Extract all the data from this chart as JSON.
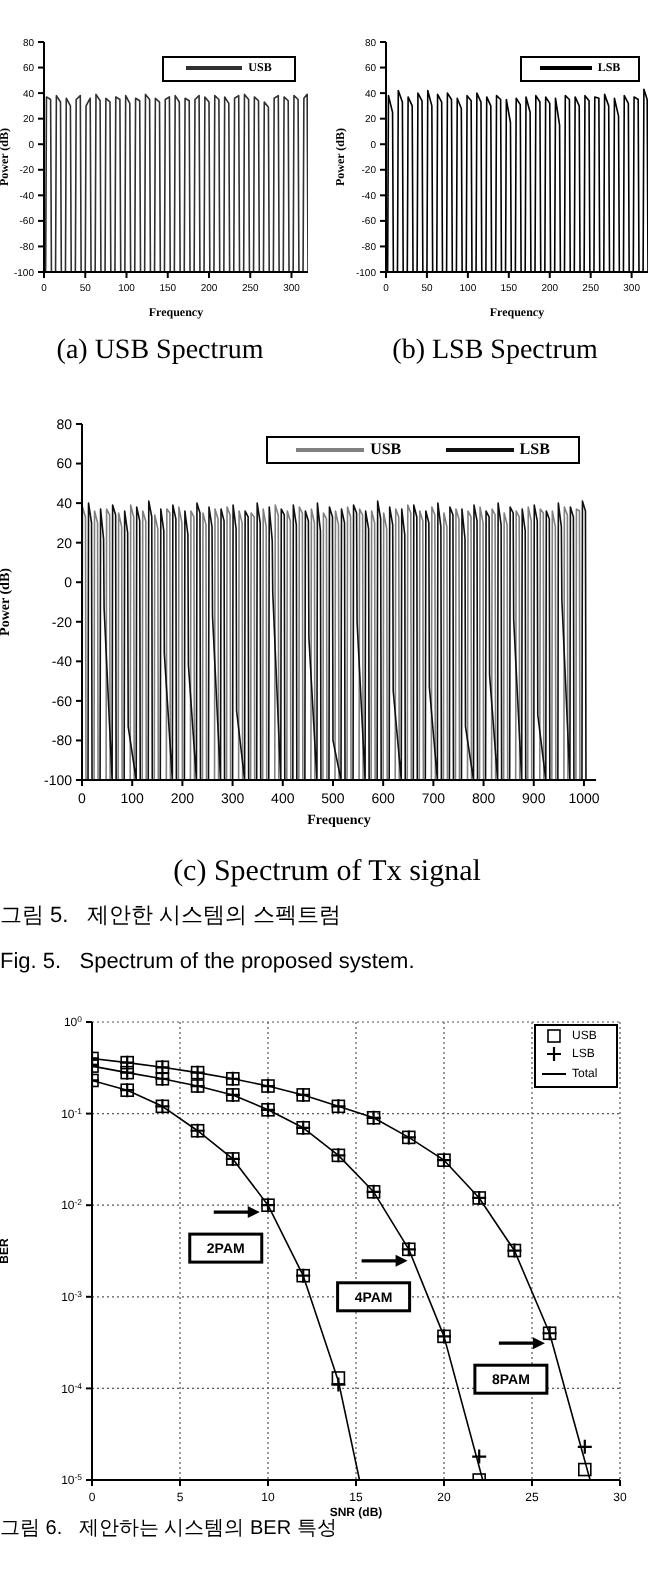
{
  "chart_data": [
    {
      "type": "line",
      "xlabel": "Frequency",
      "ylabel": "Power (dB)",
      "xlim": [
        0,
        320
      ],
      "xticks": [
        0,
        50,
        100,
        150,
        200,
        250,
        300
      ],
      "ylim": [
        -100,
        80
      ],
      "yticks": [
        -100,
        -80,
        -60,
        -40,
        -20,
        0,
        20,
        40,
        60,
        80
      ],
      "legend": "top right",
      "annotations": [
        "(a) USB Spectrum"
      ],
      "series": [
        {
          "name": "USB",
          "color": "#303030",
          "x": [
            2,
            3,
            8,
            9,
            14,
            15,
            20,
            21,
            26,
            27,
            32,
            33,
            38,
            39,
            44,
            45,
            50,
            51,
            56,
            57,
            62,
            63,
            68,
            69,
            74,
            75,
            80,
            81,
            86,
            87,
            92,
            93,
            98,
            99,
            104,
            105,
            110,
            111,
            116,
            117,
            122,
            123,
            128,
            129,
            134,
            135,
            140,
            141,
            146,
            147,
            152,
            153,
            158,
            159,
            164,
            165,
            170,
            171,
            176,
            177,
            182,
            183,
            188,
            189,
            194,
            195,
            200,
            201,
            206,
            207,
            212,
            213,
            218,
            219,
            224,
            225,
            230,
            231,
            236,
            237,
            242,
            243,
            248,
            249,
            254,
            255,
            260,
            261,
            266,
            267,
            272,
            273,
            278,
            279,
            284,
            285,
            290,
            291,
            296,
            297,
            302,
            303,
            308,
            309,
            314,
            315,
            319,
            320
          ],
          "values": [
            -100,
            37,
            35,
            -100,
            -100,
            38,
            33,
            -100,
            -100,
            36,
            30,
            -100,
            -100,
            35,
            38,
            -100,
            -100,
            30,
            36,
            -100,
            -100,
            39,
            34,
            -100,
            -100,
            36,
            33,
            -100,
            -100,
            37,
            35,
            -100,
            -100,
            38,
            32,
            -100,
            -100,
            36,
            34,
            -100,
            -100,
            39,
            35,
            -100,
            -100,
            36,
            33,
            -100,
            -100,
            35,
            37,
            -100,
            -100,
            38,
            33,
            -100,
            -100,
            36,
            34,
            -100,
            -100,
            35,
            38,
            -100,
            -100,
            37,
            33,
            -100,
            -100,
            38,
            35,
            -100,
            -100,
            37,
            32,
            -100,
            -100,
            36,
            38,
            -100,
            -100,
            39,
            35,
            -100,
            -100,
            37,
            34,
            -100,
            -100,
            33,
            29,
            -100,
            -100,
            36,
            38,
            -100,
            -100,
            37,
            34,
            -100,
            -100,
            38,
            35,
            -100,
            -100,
            36,
            39,
            -100
          ]
        }
      ]
    },
    {
      "type": "line",
      "xlabel": "Frequency",
      "ylabel": "Power (dB)",
      "xlim": [
        0,
        320
      ],
      "xticks": [
        0,
        50,
        100,
        150,
        200,
        250,
        300
      ],
      "ylim": [
        -100,
        80
      ],
      "yticks": [
        -100,
        -80,
        -60,
        -40,
        -20,
        0,
        20,
        40,
        60,
        80
      ],
      "legend": "top right",
      "annotations": [
        "(b) LSB Spectrum"
      ],
      "series": [
        {
          "name": "LSB",
          "color": "#000000",
          "x": [
            2,
            3,
            8,
            9,
            14,
            15,
            20,
            21,
            26,
            27,
            32,
            33,
            38,
            39,
            44,
            45,
            50,
            51,
            56,
            57,
            62,
            63,
            68,
            69,
            74,
            75,
            80,
            81,
            86,
            87,
            92,
            93,
            98,
            99,
            104,
            105,
            110,
            111,
            116,
            117,
            122,
            123,
            128,
            129,
            134,
            135,
            140,
            141,
            146,
            147,
            152,
            153,
            158,
            159,
            164,
            165,
            170,
            171,
            176,
            177,
            182,
            183,
            188,
            189,
            194,
            195,
            200,
            201,
            206,
            207,
            212,
            213,
            218,
            219,
            224,
            225,
            230,
            231,
            236,
            237,
            242,
            243,
            248,
            249,
            254,
            255,
            260,
            261,
            266,
            267,
            272,
            273,
            278,
            279,
            284,
            285,
            290,
            291,
            296,
            297,
            302,
            303,
            308,
            309,
            314,
            315,
            319,
            320
          ],
          "values": [
            -100,
            38,
            25,
            -100,
            -100,
            42,
            33,
            -100,
            -100,
            37,
            30,
            -100,
            -100,
            40,
            34,
            -100,
            -100,
            42,
            30,
            -100,
            -100,
            39,
            33,
            -100,
            -100,
            40,
            35,
            -100,
            -100,
            36,
            28,
            -100,
            -100,
            38,
            34,
            -100,
            -100,
            40,
            33,
            -100,
            -100,
            37,
            30,
            -100,
            -100,
            38,
            35,
            -100,
            -100,
            35,
            17,
            -100,
            -100,
            36,
            31,
            -100,
            -100,
            37,
            25,
            -100,
            -100,
            38,
            33,
            -100,
            -100,
            37,
            32,
            -100,
            -100,
            36,
            15,
            -100,
            -100,
            38,
            35,
            -100,
            -100,
            37,
            30,
            -100,
            -100,
            38,
            34,
            -100,
            -100,
            37,
            36,
            -100,
            -100,
            39,
            30,
            -100,
            -100,
            36,
            22,
            -100,
            -100,
            38,
            32,
            -100,
            -100,
            37,
            35,
            -100,
            -100,
            43,
            35,
            -100
          ]
        }
      ]
    },
    {
      "type": "line",
      "xlabel": "Frequency",
      "ylabel": "Power (dB)",
      "xlim": [
        0,
        1024
      ],
      "xticks": [
        0,
        100,
        200,
        300,
        400,
        500,
        600,
        700,
        800,
        900,
        1000
      ],
      "ylim": [
        -100,
        80
      ],
      "yticks": [
        -100,
        -80,
        -60,
        -40,
        -20,
        0,
        20,
        40,
        60,
        80
      ],
      "legend": "top right",
      "annotations": [
        "(c) Spectrum of Tx signal",
        "그림 5.   제안한 시스템의 스펙트럼",
        "Fig. 5.   Spectrum of the proposed system."
      ],
      "series": [
        {
          "name": "USB",
          "color": "#808080",
          "x": [
            0,
            1,
            7,
            8,
            24,
            25,
            31,
            32,
            48,
            49,
            55,
            56,
            72,
            73,
            79,
            80,
            96,
            97,
            103,
            104,
            120,
            121,
            127,
            128,
            144,
            145,
            151,
            152,
            168,
            169,
            175,
            176,
            192,
            193,
            199,
            200,
            216,
            217,
            223,
            224,
            240,
            241,
            247,
            248,
            264,
            265,
            271,
            272,
            288,
            289,
            295,
            296,
            312,
            313,
            319,
            320,
            336,
            337,
            343,
            344,
            360,
            361,
            367,
            368,
            384,
            385,
            391,
            392,
            408,
            409,
            415,
            416,
            432,
            433,
            439,
            440,
            456,
            457,
            463,
            464,
            480,
            481,
            487,
            488,
            504,
            505,
            511,
            512,
            528,
            529,
            535,
            536,
            552,
            553,
            559,
            560,
            576,
            577,
            583,
            584,
            600,
            601,
            607,
            608,
            624,
            625,
            631,
            632,
            648,
            649,
            655,
            656,
            672,
            673,
            679,
            680,
            696,
            697,
            703,
            704,
            720,
            721,
            727,
            728,
            744,
            745,
            751,
            752,
            768,
            769,
            775,
            776,
            792,
            793,
            799,
            800,
            816,
            817,
            823,
            824,
            840,
            841,
            847,
            848,
            864,
            865,
            871,
            872,
            888,
            889,
            895,
            896,
            912,
            913,
            919,
            920,
            936,
            937,
            943,
            944,
            960,
            961,
            967,
            968,
            984,
            985,
            991,
            992
          ],
          "values": [
            -100,
            38,
            33,
            -100,
            -100,
            36,
            30,
            -100,
            -100,
            37,
            34,
            -100,
            -100,
            35,
            28,
            -100,
            -100,
            39,
            33,
            -100,
            -100,
            36,
            31,
            -100,
            -100,
            34,
            27,
            -100,
            -100,
            37,
            35,
            -100,
            -100,
            38,
            30,
            -100,
            -100,
            36,
            33,
            -100,
            -100,
            35,
            29,
            -100,
            -100,
            37,
            32,
            -100,
            -100,
            38,
            34,
            -100,
            -100,
            36,
            30,
            -100,
            -100,
            35,
            33,
            -100,
            -100,
            37,
            28,
            -100,
            -100,
            39,
            34,
            -100,
            -100,
            36,
            31,
            -100,
            -100,
            38,
            35,
            -100,
            -100,
            37,
            30,
            -100,
            -100,
            35,
            32,
            -100,
            -100,
            36,
            29,
            -100,
            -100,
            38,
            33,
            -100,
            -100,
            37,
            34,
            -100,
            -100,
            36,
            30,
            -100,
            -100,
            35,
            27,
            -100,
            -100,
            37,
            33,
            -100,
            -100,
            39,
            35,
            -100,
            -100,
            36,
            31,
            -100,
            -100,
            38,
            34,
            -100,
            -100,
            35,
            28,
            -100,
            -100,
            37,
            32,
            -100,
            -100,
            36,
            33,
            -100,
            -100,
            38,
            30,
            -100,
            -100,
            37,
            34,
            -100,
            -100,
            35,
            29,
            -100,
            -100,
            36,
            33,
            -100,
            -100,
            38,
            31,
            -100,
            -100,
            37,
            35,
            -100,
            -100,
            36,
            28,
            -100,
            -100,
            38,
            34,
            -100,
            -100,
            37,
            36,
            -100
          ]
        },
        {
          "name": "LSB",
          "color": "#101010",
          "x": [
            12,
            13,
            19,
            20,
            36,
            37,
            43,
            44,
            60,
            61,
            67,
            68,
            84,
            85,
            91,
            92,
            108,
            109,
            115,
            116,
            132,
            133,
            139,
            140,
            156,
            157,
            163,
            164,
            180,
            181,
            187,
            188,
            204,
            205,
            211,
            212,
            228,
            229,
            235,
            236,
            252,
            253,
            259,
            260,
            276,
            277,
            283,
            284,
            300,
            301,
            307,
            308,
            324,
            325,
            331,
            332,
            348,
            349,
            355,
            356,
            372,
            373,
            379,
            380,
            396,
            397,
            403,
            404,
            420,
            421,
            427,
            428,
            444,
            445,
            451,
            452,
            468,
            469,
            475,
            476,
            492,
            493,
            499,
            500,
            516,
            517,
            523,
            524,
            540,
            541,
            547,
            548,
            564,
            565,
            571,
            572,
            588,
            589,
            595,
            596,
            612,
            613,
            619,
            620,
            636,
            637,
            643,
            644,
            660,
            661,
            667,
            668,
            684,
            685,
            691,
            692,
            708,
            709,
            715,
            716,
            732,
            733,
            739,
            740,
            756,
            757,
            763,
            764,
            780,
            781,
            787,
            788,
            804,
            805,
            811,
            812,
            828,
            829,
            835,
            836,
            852,
            853,
            859,
            860,
            876,
            877,
            883,
            884,
            900,
            901,
            907,
            908,
            924,
            925,
            931,
            932,
            948,
            949,
            955,
            956,
            972,
            973,
            979,
            980,
            996,
            997,
            1003,
            1004
          ],
          "values": [
            -100,
            40,
            30,
            -100,
            -100,
            37,
            22,
            -13,
            -100,
            39,
            34,
            -100,
            -100,
            36,
            25,
            -73,
            -100,
            38,
            31,
            -100,
            -100,
            41,
            33,
            -100,
            -100,
            37,
            26,
            -36,
            -100,
            39,
            32,
            -100,
            -100,
            36,
            24,
            -42,
            -100,
            40,
            35,
            -100,
            -100,
            38,
            28,
            -17,
            -100,
            37,
            31,
            -100,
            -100,
            39,
            27,
            -65,
            -100,
            36,
            33,
            -100,
            -100,
            40,
            30,
            -100,
            -100,
            38,
            21,
            -5,
            -100,
            37,
            34,
            -100,
            -100,
            39,
            29,
            -100,
            -100,
            36,
            31,
            -28,
            -100,
            40,
            26,
            -100,
            -100,
            38,
            33,
            -80,
            -100,
            37,
            30,
            -100,
            -100,
            39,
            35,
            -20,
            -100,
            36,
            27,
            -100,
            -100,
            41,
            32,
            -100,
            -100,
            38,
            29,
            -55,
            -100,
            37,
            24,
            -100,
            -100,
            39,
            33,
            -100,
            -100,
            36,
            30,
            -53,
            -100,
            40,
            28,
            -100,
            -100,
            38,
            34,
            -100,
            -100,
            37,
            22,
            -73,
            -100,
            39,
            31,
            -100,
            -100,
            36,
            33,
            -47,
            -100,
            40,
            29,
            -100,
            -100,
            38,
            35,
            -19,
            -100,
            37,
            26,
            -100,
            -100,
            39,
            31,
            -67,
            -100,
            36,
            32,
            -100,
            -100,
            40,
            28,
            -9,
            -100,
            38,
            33,
            -100,
            -100,
            41,
            36,
            -100
          ]
        }
      ]
    },
    {
      "type": "scatter",
      "xlabel": "SNR (dB)",
      "ylabel": "BER",
      "log": "y",
      "grid": true,
      "legend": "top right",
      "xlim": [
        0,
        30
      ],
      "xticks": [
        0,
        5,
        10,
        15,
        20,
        25,
        30
      ],
      "ylim": [
        1e-05,
        1
      ],
      "yticks": [
        {
          "value": 1e-05,
          "label": "10$^{-5}$"
        },
        {
          "value": 0.0001,
          "label": "10$^{-4}$"
        },
        {
          "value": 0.001,
          "label": "10$^{-3}$"
        },
        {
          "value": 0.01,
          "label": "10$^{-2}$"
        },
        {
          "value": 0.1,
          "label": "10$^{-1}$"
        },
        {
          "value": 1,
          "label": "10$^{0}$"
        }
      ],
      "annotations": [
        {
          "text": "2PAM",
          "x": 7.6,
          "y": 0.0034
        },
        {
          "text": "4PAM",
          "x": 16,
          "y": 0.001
        },
        {
          "text": "8PAM",
          "x": 23.8,
          "y": 0.000126
        },
        "그림 6.   제안하는 시스템의 BER 특성"
      ],
      "series": [
        {
          "name": "USB",
          "color": "#000000",
          "marker": "square",
          "x": [
            0,
            2,
            4,
            6,
            8,
            10,
            12,
            14,
            0,
            2,
            4,
            6,
            8,
            10,
            12,
            14,
            16,
            18,
            20,
            22,
            0,
            2,
            4,
            6,
            8,
            10,
            12,
            14,
            16,
            18,
            20,
            22,
            24,
            26,
            28
          ],
          "values": [
            0.23,
            0.18,
            0.12,
            0.065,
            0.032,
            0.01,
            0.0017,
            0.00013,
            0.33,
            0.28,
            0.24,
            0.2,
            0.16,
            0.11,
            0.07,
            0.035,
            0.014,
            0.0033,
            0.00037,
            1e-05,
            0.4,
            0.36,
            0.32,
            0.28,
            0.24,
            0.2,
            0.16,
            0.12,
            0.09,
            0.055,
            0.031,
            0.012,
            0.0032,
            0.0004,
            1.3e-05
          ]
        },
        {
          "name": "LSB",
          "color": "#000000",
          "marker": "cross",
          "x": [
            0,
            2,
            4,
            6,
            8,
            10,
            12,
            14,
            0,
            2,
            4,
            6,
            8,
            10,
            12,
            14,
            16,
            18,
            20,
            22,
            0,
            2,
            4,
            6,
            8,
            10,
            12,
            14,
            16,
            18,
            20,
            22,
            24,
            26,
            28
          ],
          "values": [
            0.23,
            0.18,
            0.12,
            0.065,
            0.032,
            0.01,
            0.0017,
            0.00011,
            0.33,
            0.28,
            0.24,
            0.2,
            0.16,
            0.11,
            0.07,
            0.035,
            0.014,
            0.0033,
            0.00037,
            1.8e-05,
            0.4,
            0.36,
            0.32,
            0.28,
            0.24,
            0.2,
            0.16,
            0.12,
            0.09,
            0.055,
            0.031,
            0.012,
            0.0032,
            0.0004,
            2.3e-05
          ]
        },
        {
          "name": "Total",
          "type": "line",
          "color": "#000000",
          "x": [
            0,
            2,
            4,
            6,
            8,
            10,
            12,
            14,
            15.2
          ],
          "values": [
            0.23,
            0.18,
            0.12,
            0.065,
            0.032,
            0.01,
            0.0017,
            0.00012,
            1e-05
          ]
        },
        {
          "type": "line",
          "color": "#000000",
          "x": [
            0,
            2,
            4,
            6,
            8,
            10,
            12,
            14,
            16,
            18,
            20,
            22.2
          ],
          "values": [
            0.33,
            0.28,
            0.24,
            0.2,
            0.16,
            0.11,
            0.07,
            0.035,
            0.014,
            0.0033,
            0.00037,
            1e-05
          ]
        },
        {
          "type": "line",
          "color": "#000000",
          "x": [
            0,
            2,
            4,
            6,
            8,
            10,
            12,
            14,
            16,
            18,
            20,
            22,
            24,
            26,
            28.3
          ],
          "values": [
            0.4,
            0.36,
            0.32,
            0.28,
            0.24,
            0.2,
            0.16,
            0.12,
            0.09,
            0.055,
            0.031,
            0.012,
            0.0032,
            0.0004,
            1e-05
          ]
        }
      ]
    }
  ]
}
